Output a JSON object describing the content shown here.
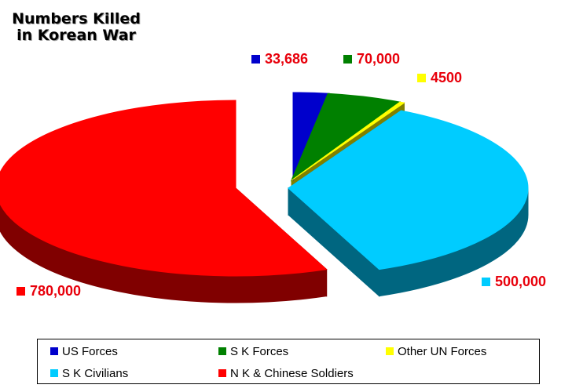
{
  "chart_data": {
    "type": "pie",
    "title_lines": [
      "Numbers Killed",
      "in Korean War"
    ],
    "series": [
      {
        "name": "US Forces",
        "value": 33686,
        "label": "33,686",
        "color": "#0000cc",
        "side": "#000066"
      },
      {
        "name": "S K Forces",
        "value": 70000,
        "label": "70,000",
        "color": "#008000",
        "side": "#004000"
      },
      {
        "name": "Other UN Forces",
        "value": 4500,
        "label": "4500",
        "color": "#ffff00",
        "side": "#808000"
      },
      {
        "name": "S K Civilians",
        "value": 500000,
        "label": "500,000",
        "color": "#00ccff",
        "side": "#006680"
      },
      {
        "name": "N K & Chinese Soldiers",
        "value": 780000,
        "label": "780,000",
        "color": "#ff0000",
        "side": "#800000"
      }
    ],
    "legend_position": "bottom",
    "style": "3d-exploded"
  }
}
